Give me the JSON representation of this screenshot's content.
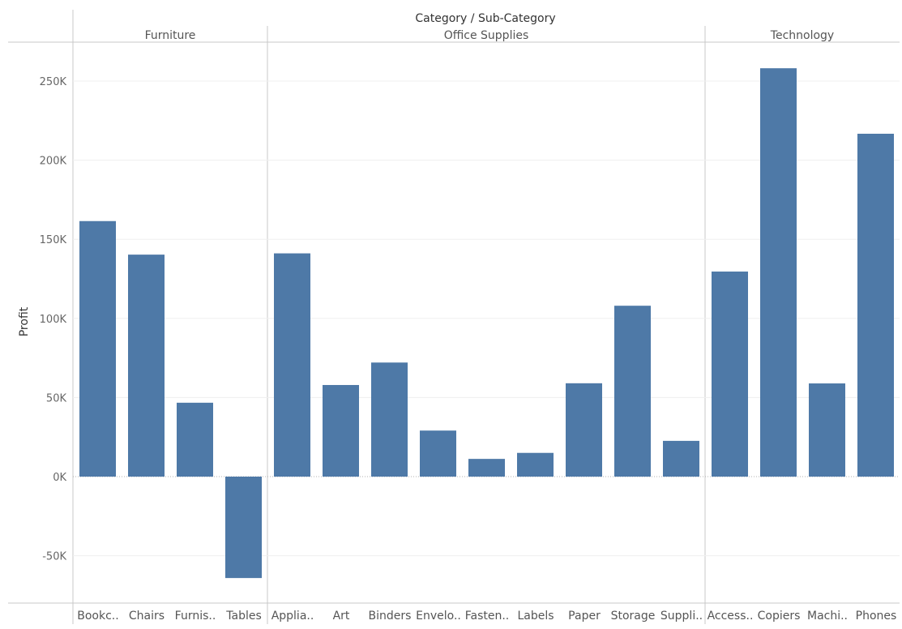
{
  "chart_data": {
    "type": "bar",
    "title": "Category / Sub-Category",
    "ylabel": "Profit",
    "ylim": [
      -80000,
      280000
    ],
    "y_ticks": [
      {
        "value": 250000,
        "label": "250K"
      },
      {
        "value": 200000,
        "label": "200K"
      },
      {
        "value": 150000,
        "label": "150K"
      },
      {
        "value": 100000,
        "label": "100K"
      },
      {
        "value": 50000,
        "label": "50K"
      },
      {
        "value": 0,
        "label": "0K"
      },
      {
        "value": -50000,
        "label": "-50K"
      }
    ],
    "grid": true,
    "bar_color": "#4e79a7",
    "groups": [
      {
        "name": "Furniture",
        "categories": [
          "Bookc..",
          "Chairs",
          "Furnis..",
          "Tables"
        ],
        "values": [
          161500,
          140300,
          46700,
          -64100
        ]
      },
      {
        "name": "Office Supplies",
        "categories": [
          "Applia..",
          "Art",
          "Binders",
          "Envelo..",
          "Fasten..",
          "Labels",
          "Paper",
          "Storage",
          "Suppli.."
        ],
        "values": [
          141100,
          57900,
          72100,
          29100,
          11200,
          15000,
          59000,
          108000,
          22600
        ]
      },
      {
        "name": "Technology",
        "categories": [
          "Access..",
          "Copiers",
          "Machi..",
          "Phones"
        ],
        "values": [
          129600,
          258100,
          58900,
          216700
        ]
      }
    ]
  }
}
